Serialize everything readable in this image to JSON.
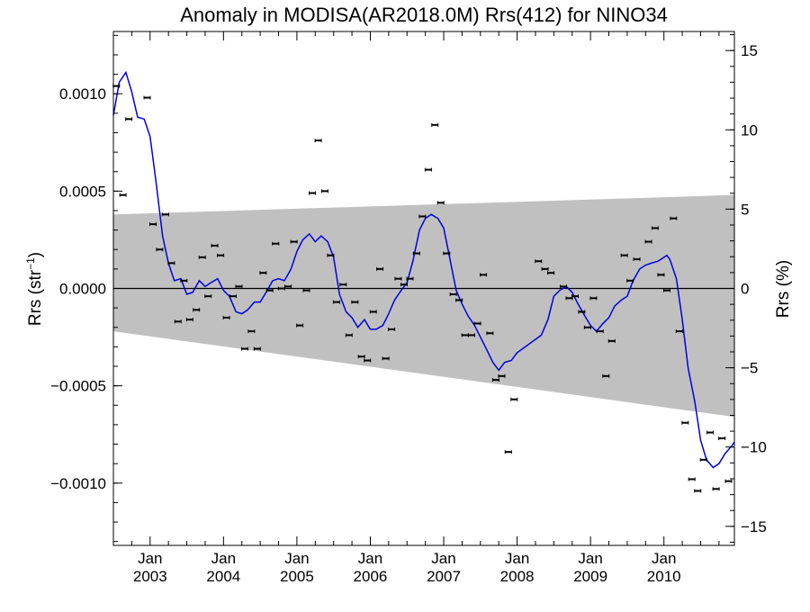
{
  "chart_data": {
    "type": "scatter",
    "title": "Anomaly in MODISA(AR2018.0M) Rrs(412) for NINO34",
    "ylabel": "Rrs (str",
    "ylabel_sup": "−1",
    "ylabel_close": ")",
    "y2label": "Rrs (%)",
    "xlim": [
      2002.5,
      2010.96
    ],
    "ylim": [
      -0.00132,
      0.00132
    ],
    "y2lim": [
      -16.2,
      16.2
    ],
    "grid": false,
    "zero_line": true,
    "yticks": [
      {
        "value": 0.001,
        "label": "0.0010"
      },
      {
        "value": 0.0005,
        "label": "0.0005"
      },
      {
        "value": 0.0,
        "label": "0.0000"
      },
      {
        "value": -0.0005,
        "label": "−0.0005"
      },
      {
        "value": -0.001,
        "label": "−0.0010"
      }
    ],
    "y2ticks": [
      {
        "value": 15,
        "label": "15"
      },
      {
        "value": 10,
        "label": "10"
      },
      {
        "value": 5,
        "label": "5"
      },
      {
        "value": 0,
        "label": "0"
      },
      {
        "value": -5,
        "label": "−5"
      },
      {
        "value": -10,
        "label": "−10"
      },
      {
        "value": -15,
        "label": "−15"
      }
    ],
    "xticks": [
      {
        "value": 2003.0,
        "month": "Jan",
        "year": "2003"
      },
      {
        "value": 2004.0,
        "month": "Jan",
        "year": "2004"
      },
      {
        "value": 2005.0,
        "month": "Jan",
        "year": "2005"
      },
      {
        "value": 2006.0,
        "month": "Jan",
        "year": "2006"
      },
      {
        "value": 2007.0,
        "month": "Jan",
        "year": "2007"
      },
      {
        "value": 2008.0,
        "month": "Jan",
        "year": "2008"
      },
      {
        "value": 2009.0,
        "month": "Jan",
        "year": "2009"
      },
      {
        "value": 2010.0,
        "month": "Jan",
        "year": "2010"
      }
    ],
    "band": {
      "color": "#c0c0c0",
      "upper": [
        [
          2002.5,
          0.00038
        ],
        [
          2010.96,
          0.00048
        ]
      ],
      "lower": [
        [
          2002.5,
          -0.00022
        ],
        [
          2010.96,
          -0.00066
        ]
      ]
    },
    "line_color": "#0000dd",
    "marker_color": "#000000",
    "points": [
      [
        2002.54,
        0.00104
      ],
      [
        2002.63,
        0.00048
      ],
      [
        2002.71,
        0.00087
      ],
      [
        2002.96,
        0.00098
      ],
      [
        2003.04,
        0.00033
      ],
      [
        2003.13,
        0.0002
      ],
      [
        2003.21,
        0.00038
      ],
      [
        2003.29,
        0.00013
      ],
      [
        2003.38,
        -0.00017
      ],
      [
        2003.46,
        4e-05
      ],
      [
        2003.54,
        -0.00016
      ],
      [
        2003.63,
        -0.00011
      ],
      [
        2003.71,
        0.00016
      ],
      [
        2003.79,
        -4e-05
      ],
      [
        2003.88,
        0.00022
      ],
      [
        2003.96,
        0.00017
      ],
      [
        2004.04,
        -0.00015
      ],
      [
        2004.13,
        -4e-05
      ],
      [
        2004.21,
        1e-05
      ],
      [
        2004.29,
        -0.00031
      ],
      [
        2004.38,
        -0.00022
      ],
      [
        2004.46,
        -0.00031
      ],
      [
        2004.54,
        8e-05
      ],
      [
        2004.63,
        -1e-05
      ],
      [
        2004.71,
        0.00023
      ],
      [
        2004.79,
        0.0
      ],
      [
        2004.88,
        1e-05
      ],
      [
        2004.96,
        0.00024
      ],
      [
        2005.04,
        -0.00019
      ],
      [
        2005.13,
        -1e-05
      ],
      [
        2005.21,
        0.00049
      ],
      [
        2005.29,
        0.00076
      ],
      [
        2005.38,
        0.0005
      ],
      [
        2005.46,
        0.00017
      ],
      [
        2005.54,
        -7e-05
      ],
      [
        2005.63,
        2e-05
      ],
      [
        2005.71,
        -0.00024
      ],
      [
        2005.79,
        -7e-05
      ],
      [
        2005.88,
        -0.00035
      ],
      [
        2005.96,
        -0.00037
      ],
      [
        2006.04,
        -0.00012
      ],
      [
        2006.13,
        0.0001
      ],
      [
        2006.21,
        -0.00036
      ],
      [
        2006.29,
        -0.00021
      ],
      [
        2006.38,
        5e-05
      ],
      [
        2006.46,
        2e-05
      ],
      [
        2006.54,
        5e-05
      ],
      [
        2006.63,
        0.00018
      ],
      [
        2006.71,
        0.00037
      ],
      [
        2006.79,
        0.00061
      ],
      [
        2006.88,
        0.00084
      ],
      [
        2006.96,
        0.00044
      ],
      [
        2007.04,
        0.00018
      ],
      [
        2007.13,
        -3e-05
      ],
      [
        2007.21,
        -6e-05
      ],
      [
        2007.29,
        -0.00024
      ],
      [
        2007.38,
        -0.00024
      ],
      [
        2007.46,
        -0.00018
      ],
      [
        2007.54,
        7e-05
      ],
      [
        2007.63,
        -0.00023
      ],
      [
        2007.71,
        -0.00047
      ],
      [
        2007.79,
        -0.00045
      ],
      [
        2007.88,
        -0.00084
      ],
      [
        2007.96,
        -0.00057
      ],
      [
        2008.29,
        0.00014
      ],
      [
        2008.38,
        0.0001
      ],
      [
        2008.46,
        8e-05
      ],
      [
        2008.63,
        1e-05
      ],
      [
        2008.71,
        -5e-05
      ],
      [
        2008.79,
        -4e-05
      ],
      [
        2008.88,
        -0.00012
      ],
      [
        2008.96,
        -0.0002
      ],
      [
        2009.04,
        -5e-05
      ],
      [
        2009.13,
        -0.00022
      ],
      [
        2009.21,
        -0.00045
      ],
      [
        2009.29,
        -0.00027
      ],
      [
        2009.46,
        0.00017
      ],
      [
        2009.54,
        4e-05
      ],
      [
        2009.63,
        0.00015
      ],
      [
        2009.79,
        0.00024
      ],
      [
        2009.88,
        0.00031
      ],
      [
        2009.96,
        7e-05
      ],
      [
        2010.04,
        -1e-05
      ],
      [
        2010.13,
        0.00036
      ],
      [
        2010.21,
        -0.00022
      ],
      [
        2010.29,
        -0.00069
      ],
      [
        2010.38,
        -0.00098
      ],
      [
        2010.46,
        -0.00104
      ],
      [
        2010.54,
        -0.00088
      ],
      [
        2010.63,
        -0.00074
      ],
      [
        2010.71,
        -0.00103
      ],
      [
        2010.79,
        -0.00077
      ],
      [
        2010.88,
        -0.00099
      ]
    ],
    "line": [
      [
        2002.5,
        0.00089
      ],
      [
        2002.58,
        0.00106
      ],
      [
        2002.67,
        0.00111
      ],
      [
        2002.75,
        0.00101
      ],
      [
        2002.83,
        0.00088
      ],
      [
        2002.92,
        0.00087
      ],
      [
        2003.0,
        0.00078
      ],
      [
        2003.08,
        0.00055
      ],
      [
        2003.17,
        0.00027
      ],
      [
        2003.25,
        0.00013
      ],
      [
        2003.33,
        4e-05
      ],
      [
        2003.42,
        5e-05
      ],
      [
        2003.5,
        -3e-05
      ],
      [
        2003.58,
        -2e-05
      ],
      [
        2003.67,
        4e-05
      ],
      [
        2003.75,
        1e-05
      ],
      [
        2003.83,
        3e-05
      ],
      [
        2003.92,
        5e-05
      ],
      [
        2004.0,
        -1e-05
      ],
      [
        2004.08,
        -4e-05
      ],
      [
        2004.17,
        -0.00012
      ],
      [
        2004.25,
        -0.00013
      ],
      [
        2004.33,
        -0.00011
      ],
      [
        2004.42,
        -7e-05
      ],
      [
        2004.5,
        -7e-05
      ],
      [
        2004.58,
        -2e-05
      ],
      [
        2004.67,
        4e-05
      ],
      [
        2004.75,
        5e-05
      ],
      [
        2004.83,
        4e-05
      ],
      [
        2004.92,
        0.0001
      ],
      [
        2005.0,
        0.00019
      ],
      [
        2005.08,
        0.00025
      ],
      [
        2005.17,
        0.00028
      ],
      [
        2005.25,
        0.00024
      ],
      [
        2005.33,
        0.00027
      ],
      [
        2005.42,
        0.00024
      ],
      [
        2005.5,
        0.00016
      ],
      [
        2005.58,
        -3e-05
      ],
      [
        2005.67,
        -0.00012
      ],
      [
        2005.75,
        -0.00015
      ],
      [
        2005.83,
        -0.0002
      ],
      [
        2005.92,
        -0.00016
      ],
      [
        2006.0,
        -0.00021
      ],
      [
        2006.08,
        -0.00021
      ],
      [
        2006.17,
        -0.00019
      ],
      [
        2006.25,
        -0.00013
      ],
      [
        2006.33,
        -6e-05
      ],
      [
        2006.42,
        -1e-05
      ],
      [
        2006.5,
        3e-05
      ],
      [
        2006.58,
        0.00014
      ],
      [
        2006.67,
        0.0003
      ],
      [
        2006.75,
        0.00036
      ],
      [
        2006.83,
        0.00038
      ],
      [
        2006.92,
        0.00036
      ],
      [
        2007.0,
        0.00031
      ],
      [
        2007.08,
        0.00016
      ],
      [
        2007.17,
        -1e-05
      ],
      [
        2007.25,
        -8e-05
      ],
      [
        2007.33,
        -0.00014
      ],
      [
        2007.42,
        -0.00019
      ],
      [
        2007.5,
        -0.00025
      ],
      [
        2007.58,
        -0.00031
      ],
      [
        2007.67,
        -0.00038
      ],
      [
        2007.75,
        -0.00042
      ],
      [
        2007.83,
        -0.00038
      ],
      [
        2007.92,
        -0.00037
      ],
      [
        2008.0,
        -0.00033
      ],
      [
        2008.33,
        -0.00024
      ],
      [
        2008.42,
        -0.00016
      ],
      [
        2008.5,
        -4e-05
      ],
      [
        2008.58,
        -1e-05
      ],
      [
        2008.67,
        1e-05
      ],
      [
        2008.75,
        -2e-05
      ],
      [
        2008.83,
        -8e-05
      ],
      [
        2008.92,
        -0.00014
      ],
      [
        2009.0,
        -0.00019
      ],
      [
        2009.08,
        -0.00022
      ],
      [
        2009.17,
        -0.00018
      ],
      [
        2009.25,
        -0.00015
      ],
      [
        2009.33,
        -9e-05
      ],
      [
        2009.42,
        -6e-05
      ],
      [
        2009.5,
        -4e-05
      ],
      [
        2009.58,
        4e-05
      ],
      [
        2009.67,
        0.0001
      ],
      [
        2009.75,
        0.00012
      ],
      [
        2009.83,
        0.00013
      ],
      [
        2009.92,
        0.00014
      ],
      [
        2010.0,
        0.00016
      ],
      [
        2010.04,
        0.00017
      ],
      [
        2010.08,
        0.00015
      ],
      [
        2010.17,
        5e-05
      ],
      [
        2010.25,
        -0.00016
      ],
      [
        2010.33,
        -0.00041
      ],
      [
        2010.42,
        -0.00058
      ],
      [
        2010.5,
        -0.00078
      ],
      [
        2010.58,
        -0.00088
      ],
      [
        2010.67,
        -0.00092
      ],
      [
        2010.75,
        -0.0009
      ],
      [
        2010.83,
        -0.00085
      ],
      [
        2010.92,
        -0.00081
      ],
      [
        2010.96,
        -0.00079
      ]
    ]
  }
}
